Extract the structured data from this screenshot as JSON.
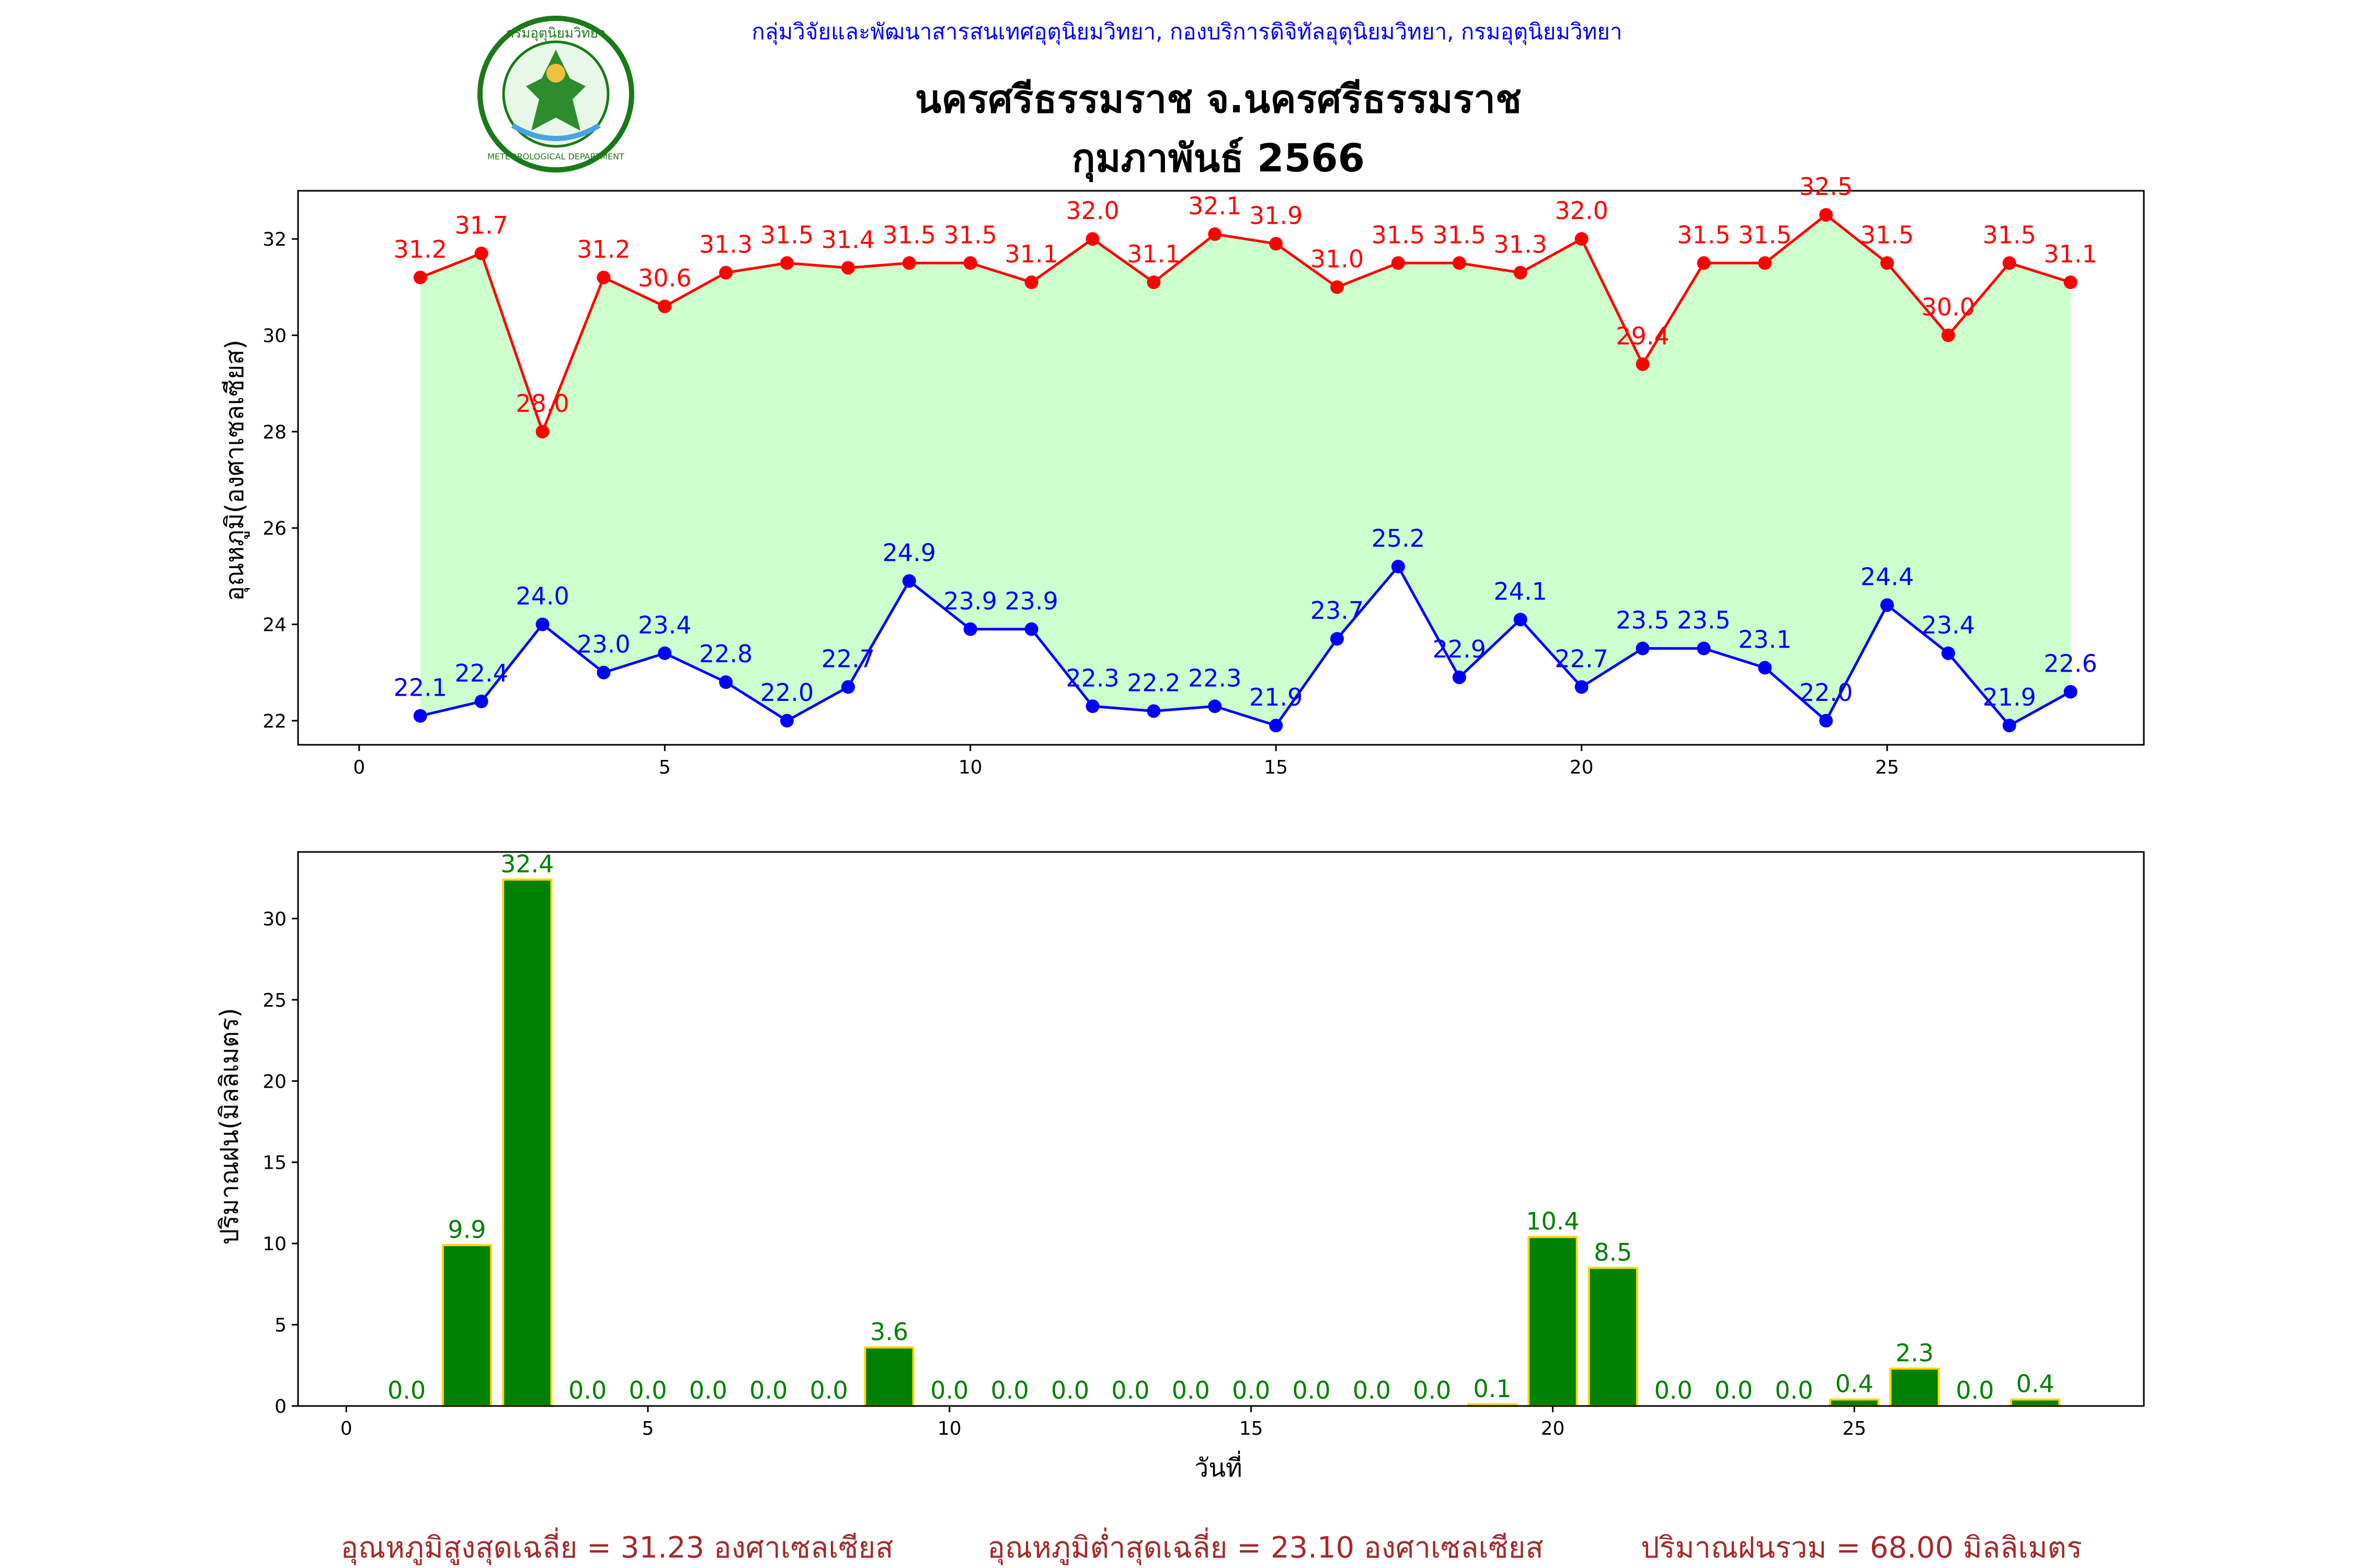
{
  "header": {
    "subtitle": "กลุ่มวิจัยและพัฒนาสารสนเทศอุตุนิยมวิทยา, กองบริการดิจิทัลอุตุนิยมวิทยา, กรมอุตุนิยมวิทยา",
    "title_line1": "นครศรีธรรมราช จ.นครศรีธรรมราช",
    "title_line2": "กุมภาพันธ์ 2566",
    "logo_text_top": "กรมอุตุนิยมวิทยา",
    "logo_text_bottom": "METEOROLOGICAL DEPARTMENT"
  },
  "colors": {
    "max_temp": "#ff0000",
    "min_temp": "#0000ff",
    "temp_fill": "#ccffcc",
    "rain_bar": "#008000",
    "rain_edge": "#ffd700",
    "rain_label": "#008000",
    "subtitle": "#0000ff",
    "footer": "#a52a2a"
  },
  "chart_data": [
    {
      "type": "line",
      "ylabel": "อุณหภูมิ(องศาเซลเซียส)",
      "xlabel": "",
      "xlim": [
        -1,
        29.2
      ],
      "ylim": [
        21.5,
        33
      ],
      "xticks": [
        0,
        5,
        10,
        15,
        20,
        25
      ],
      "yticks": [
        22,
        24,
        26,
        28,
        30,
        32
      ],
      "x": [
        1,
        2,
        3,
        4,
        5,
        6,
        7,
        8,
        9,
        10,
        11,
        12,
        13,
        14,
        15,
        16,
        17,
        18,
        19,
        20,
        21,
        22,
        23,
        24,
        25,
        26,
        27,
        28
      ],
      "fill_between": "max_min",
      "series": [
        {
          "key": "max",
          "values": [
            31.2,
            31.7,
            28.0,
            31.2,
            30.6,
            31.3,
            31.5,
            31.4,
            31.5,
            31.5,
            31.1,
            32.0,
            31.1,
            32.1,
            31.9,
            31.0,
            31.5,
            31.5,
            31.3,
            32.0,
            29.4,
            31.5,
            31.5,
            32.5,
            31.5,
            30.0,
            31.5,
            31.1
          ]
        },
        {
          "key": "min",
          "values": [
            22.1,
            22.4,
            24.0,
            23.0,
            23.4,
            22.8,
            22.0,
            22.7,
            24.9,
            23.9,
            23.9,
            22.3,
            22.2,
            22.3,
            21.9,
            23.7,
            25.2,
            22.9,
            24.1,
            22.7,
            23.5,
            23.5,
            23.1,
            22.0,
            24.4,
            23.4,
            21.9,
            22.6
          ]
        }
      ]
    },
    {
      "type": "bar",
      "ylabel": "ปริมาณฝน(มิลลิเมตร)",
      "xlabel": "วันที่",
      "xlim": [
        -0.8,
        29.8
      ],
      "ylim": [
        0,
        34.1
      ],
      "xticks": [
        0,
        5,
        10,
        15,
        20,
        25
      ],
      "yticks": [
        0,
        5,
        10,
        15,
        20,
        25,
        30
      ],
      "x": [
        1,
        2,
        3,
        4,
        5,
        6,
        7,
        8,
        9,
        10,
        11,
        12,
        13,
        14,
        15,
        16,
        17,
        18,
        19,
        20,
        21,
        22,
        23,
        24,
        25,
        26,
        27,
        28
      ],
      "values": [
        0.0,
        9.9,
        32.4,
        0.0,
        0.0,
        0.0,
        0.0,
        0.0,
        3.6,
        0.0,
        0.0,
        0.0,
        0.0,
        0.0,
        0.0,
        0.0,
        0.0,
        0.0,
        0.1,
        10.4,
        8.5,
        0.0,
        0.0,
        0.0,
        0.4,
        2.3,
        0.0,
        0.4
      ]
    }
  ],
  "footer": {
    "max_avg": "อุณหภูมิสูงสุดเฉลี่ย = 31.23 องศาเซลเซียส",
    "min_avg": "อุณหภูมิต่ำสุดเฉลี่ย = 23.10 องศาเซลเซียส",
    "rain_total": "ปริมาณฝนรวม = 68.00 มิลลิเมตร"
  }
}
